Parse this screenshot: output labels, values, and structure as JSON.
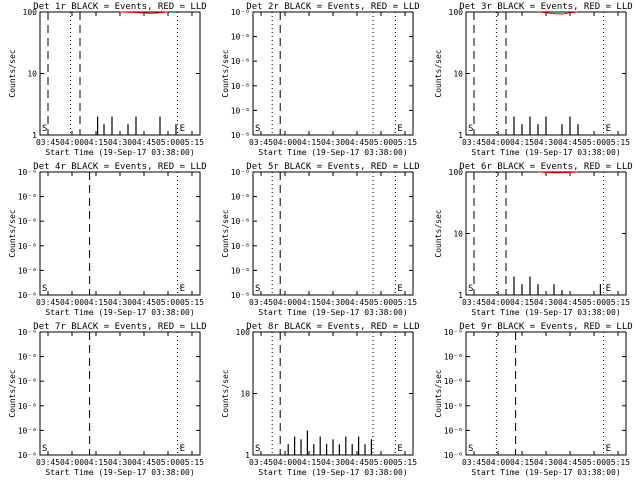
{
  "window": {
    "title": ""
  },
  "chart_data": [
    {
      "type": "line",
      "title": "Det 1r BLACK = Events, RED = LLD",
      "xlabel": "Start Time (19-Sep-17 03:38:00)",
      "ylabel": "Counts/sec",
      "yscale": "log",
      "ylim": [
        1,
        100
      ],
      "y_tick_labels": [
        "1",
        "10",
        "100"
      ],
      "x_tick_labels": [
        "03:45",
        "04:00",
        "04:15",
        "04:30",
        "04:45",
        "05:00",
        "05:15"
      ],
      "xlim_min": [
        0,
        100
      ],
      "vlines": {
        "dashed": [
          5,
          25
        ],
        "dotted": [
          19,
          86
        ]
      },
      "markers": [
        "S",
        "E"
      ],
      "series": [
        {
          "name": "BLACK = Events",
          "color": "#000000",
          "x": [
            36,
            40,
            45,
            55,
            60,
            65,
            75,
            85
          ],
          "y": [
            2,
            1.5,
            2,
            1.5,
            2,
            1,
            2,
            1.5
          ]
        },
        {
          "name": "RED = LLD",
          "color": "#ff0000",
          "x": [
            50,
            60,
            70,
            80
          ],
          "y": [
            100,
            98,
            95,
            100
          ]
        }
      ]
    },
    {
      "type": "line",
      "title": "Det 2r BLACK = Events, RED = LLD",
      "xlabel": "Start Time (19-Sep-17 03:38:00)",
      "ylabel": "Counts/sec",
      "yscale": "log",
      "ylim": [
        1e-06,
        1e-05
      ],
      "y_tick_labels": [
        "10⁻⁶",
        "10⁻⁶",
        "10⁻⁶",
        "10⁻⁶",
        "10⁻⁶",
        "10⁻⁶"
      ],
      "x_tick_labels": [
        "03:45",
        "04:00",
        "04:15",
        "04:30",
        "04:45",
        "05:00",
        "05:15"
      ],
      "xlim_min": [
        0,
        100
      ],
      "vlines": {
        "dashed": [
          17
        ],
        "dotted": [
          12,
          75,
          89
        ]
      },
      "markers": [
        "S",
        "E"
      ],
      "series": []
    },
    {
      "type": "line",
      "title": "Det 3r BLACK = Events, RED = LLD",
      "xlabel": "Start Time (19-Sep-17 03:38:00)",
      "ylabel": "Counts/sec",
      "yscale": "log",
      "ylim": [
        1,
        100
      ],
      "y_tick_labels": [
        "1",
        "10",
        "100"
      ],
      "x_tick_labels": [
        "03:45",
        "04:00",
        "04:15",
        "04:30",
        "04:45",
        "05:00",
        "05:15"
      ],
      "xlim_min": [
        0,
        100
      ],
      "vlines": {
        "dashed": [
          5,
          25
        ],
        "dotted": [
          19,
          86
        ]
      },
      "markers": [
        "S",
        "E"
      ],
      "series": [
        {
          "name": "BLACK = Events",
          "color": "#000000",
          "x": [
            30,
            35,
            40,
            45,
            50,
            55,
            60,
            65,
            70
          ],
          "y": [
            2,
            1.5,
            2,
            1.5,
            2,
            1,
            1.5,
            2,
            1.5
          ]
        },
        {
          "name": "RED = LLD",
          "color": "#ff0000",
          "x": [
            45,
            50,
            55,
            60,
            65,
            70
          ],
          "y": [
            100,
            97,
            94,
            93,
            97,
            100
          ]
        }
      ]
    },
    {
      "type": "line",
      "title": "Det 4r BLACK = Events, RED = LLD",
      "xlabel": "Start Time (19-Sep-17 03:38:00)",
      "ylabel": "Counts/sec",
      "yscale": "log",
      "ylim": [
        1e-06,
        1e-05
      ],
      "y_tick_labels": [
        "10⁻⁶",
        "10⁻⁶",
        "10⁻⁶",
        "10⁻⁶",
        "10⁻⁶",
        "10⁻⁶"
      ],
      "x_tick_labels": [
        "03:45",
        "04:00",
        "04:15",
        "04:30",
        "04:45",
        "05:00",
        "05:15"
      ],
      "xlim_min": [
        0,
        100
      ],
      "vlines": {
        "dashed": [
          31
        ],
        "dotted": [
          86
        ]
      },
      "markers": [
        "S",
        "E"
      ],
      "series": []
    },
    {
      "type": "line",
      "title": "Det 5r BLACK = Events, RED = LLD",
      "xlabel": "Start Time (19-Sep-17 03:38:00)",
      "ylabel": "Counts/sec",
      "yscale": "log",
      "ylim": [
        1e-06,
        1e-05
      ],
      "y_tick_labels": [
        "10⁻⁶",
        "10⁻⁶",
        "10⁻⁶",
        "10⁻⁶",
        "10⁻⁶",
        "10⁻⁶"
      ],
      "x_tick_labels": [
        "03:45",
        "04:00",
        "04:15",
        "04:30",
        "04:45",
        "05:00",
        "05:15"
      ],
      "xlim_min": [
        0,
        100
      ],
      "vlines": {
        "dashed": [
          17
        ],
        "dotted": [
          12,
          75,
          89
        ]
      },
      "markers": [
        "S",
        "E"
      ],
      "series": []
    },
    {
      "type": "line",
      "title": "Det 6r BLACK = Events, RED = LLD",
      "xlabel": "Start Time (19-Sep-17 03:38:00)",
      "ylabel": "Counts/sec",
      "yscale": "log",
      "ylim": [
        1,
        100
      ],
      "y_tick_labels": [
        "1",
        "10",
        "100"
      ],
      "x_tick_labels": [
        "03:45",
        "04:00",
        "04:15",
        "04:30",
        "04:45",
        "05:00",
        "05:15"
      ],
      "xlim_min": [
        0,
        100
      ],
      "vlines": {
        "dashed": [
          5,
          25
        ],
        "dotted": [
          19,
          86
        ]
      },
      "markers": [
        "S",
        "E"
      ],
      "series": [
        {
          "name": "BLACK = Events",
          "color": "#000000",
          "x": [
            30,
            35,
            40,
            45,
            50,
            55,
            60,
            84
          ],
          "y": [
            2,
            1.5,
            2,
            1.5,
            1,
            1.5,
            1.2,
            1.5
          ]
        },
        {
          "name": "RED = LLD",
          "color": "#ff0000",
          "x": [
            45,
            55,
            65,
            70
          ],
          "y": [
            100,
            97,
            98,
            100
          ]
        }
      ]
    },
    {
      "type": "line",
      "title": "Det 7r BLACK = Events, RED = LLD",
      "xlabel": "Start Time (19-Sep-17 03:38:00)",
      "ylabel": "Counts/sec",
      "yscale": "log",
      "ylim": [
        1e-06,
        1e-05
      ],
      "y_tick_labels": [
        "10⁻⁶",
        "10⁻⁶",
        "10⁻⁶",
        "10⁻⁶",
        "10⁻⁶",
        "10⁻⁶"
      ],
      "x_tick_labels": [
        "03:45",
        "04:00",
        "04:15",
        "04:30",
        "04:45",
        "05:00",
        "05:15"
      ],
      "xlim_min": [
        0,
        100
      ],
      "vlines": {
        "dashed": [
          31
        ],
        "dotted": [
          86
        ]
      },
      "markers": [
        "S",
        "E"
      ],
      "series": []
    },
    {
      "type": "line",
      "title": "Det 8r BLACK = Events, RED = LLD",
      "xlabel": "Start Time (19-Sep-17 03:38:00)",
      "ylabel": "Counts/sec",
      "yscale": "log",
      "ylim": [
        1,
        100
      ],
      "y_tick_labels": [
        "1",
        "10",
        "100"
      ],
      "x_tick_labels": [
        "03:45",
        "04:00",
        "04:15",
        "04:30",
        "04:45",
        "05:00",
        "05:15"
      ],
      "xlim_min": [
        0,
        100
      ],
      "vlines": {
        "dashed": [
          17
        ],
        "dotted": [
          12,
          75,
          89
        ]
      },
      "markers": [
        "S",
        "E"
      ],
      "series": [
        {
          "name": "BLACK = Events",
          "color": "#000000",
          "x": [
            22,
            26,
            30,
            34,
            38,
            42,
            46,
            50,
            54,
            58,
            62,
            66,
            70,
            74
          ],
          "y": [
            1.5,
            2,
            1.8,
            2.5,
            1.5,
            2,
            1.5,
            1.8,
            1.5,
            2,
            1.5,
            2,
            1.5,
            1.8
          ]
        }
      ]
    },
    {
      "type": "line",
      "title": "Det 9r BLACK = Events, RED = LLD",
      "xlabel": "Start Time (19-Sep-17 03:38:00)",
      "ylabel": "Counts/sec",
      "yscale": "log",
      "ylim": [
        1e-06,
        1e-05
      ],
      "y_tick_labels": [
        "10⁻⁶",
        "10⁻⁶",
        "10⁻⁶",
        "10⁻⁶",
        "10⁻⁶",
        "10⁻⁶"
      ],
      "x_tick_labels": [
        "03:45",
        "04:00",
        "04:15",
        "04:30",
        "04:45",
        "05:00",
        "05:15"
      ],
      "xlim_min": [
        0,
        100
      ],
      "vlines": {
        "dashed": [
          31
        ],
        "dotted": [
          19,
          86
        ]
      },
      "markers": [
        "S",
        "E"
      ],
      "series": []
    }
  ]
}
